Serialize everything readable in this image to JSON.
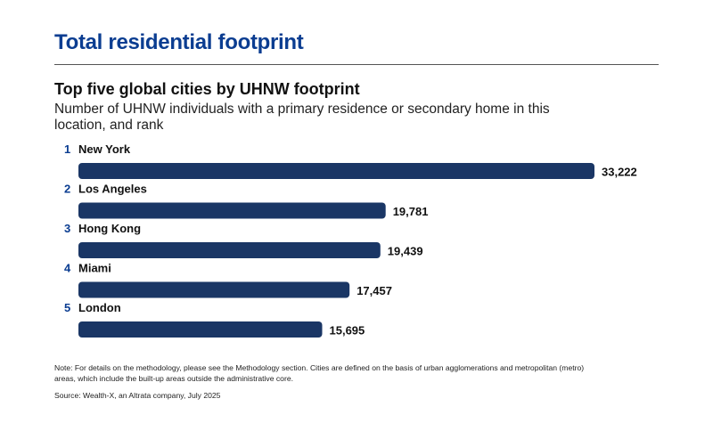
{
  "chart_data": {
    "type": "bar",
    "orientation": "horizontal",
    "title": "Total residential footprint",
    "subtitle": "Top five global cities by UHNW footprint",
    "description": "Number of UHNW individuals with a primary residence or secondary home in this location, and rank",
    "categories": [
      "New York",
      "Los Angeles",
      "Hong Kong",
      "Miami",
      "London"
    ],
    "ranks": [
      "1",
      "2",
      "3",
      "4",
      "5"
    ],
    "values": [
      33222,
      19781,
      19439,
      17457,
      15695
    ],
    "value_labels": [
      "33,222",
      "19,781",
      "19,439",
      "17,457",
      "15,695"
    ],
    "xlim": [
      0,
      33222
    ],
    "grid": false,
    "legend": "none"
  },
  "footer": {
    "note": "Note: For details on the methodology, please see the Methodology section. Cities are defined on the basis of urban agglomerations and metropolitan (metro) areas, which include the built-up areas outside the administrative core.",
    "source": "Source: Wealth-X, an Altrata company, July 2025"
  },
  "colors": {
    "title": "#0b3d91",
    "bar": "#1a3665",
    "rank": "#0b3d91",
    "text": "#111111"
  }
}
